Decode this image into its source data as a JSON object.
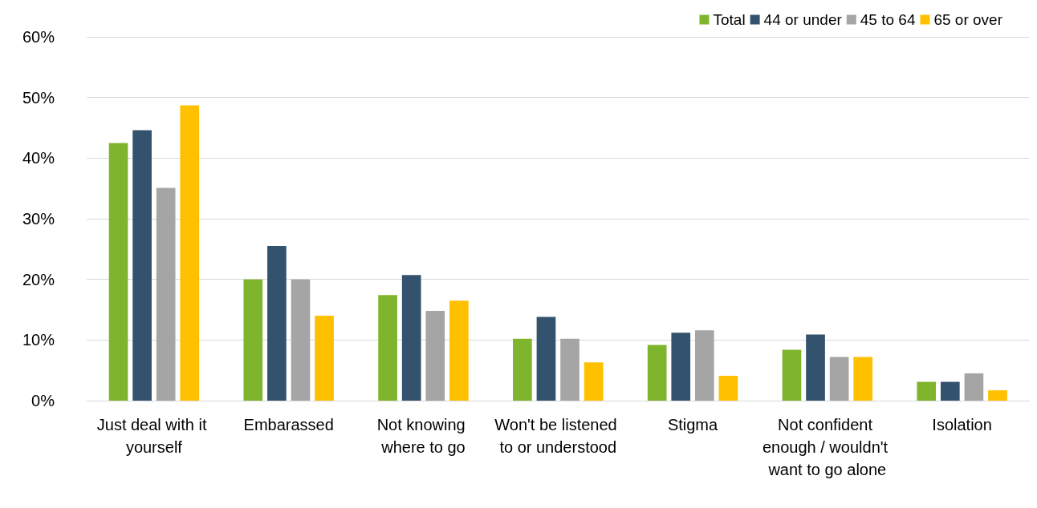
{
  "chart_data": {
    "type": "bar",
    "categories": [
      "Just deal with it yourself",
      "Embarassed",
      "Not knowing where to go",
      "Won't be listened to or understood",
      "Stigma",
      "Not confident enough / wouldn't want to go alone",
      "Isolation"
    ],
    "series": [
      {
        "name": "Total",
        "color": "#7fb52d",
        "values": [
          42.5,
          20.0,
          17.4,
          10.2,
          9.2,
          8.4,
          3.1
        ]
      },
      {
        "name": "44 or under",
        "color": "#32526e",
        "values": [
          44.6,
          25.5,
          20.7,
          13.8,
          11.2,
          10.9,
          3.1
        ]
      },
      {
        "name": "45 to 64",
        "color": "#a5a5a5",
        "values": [
          35.1,
          20.0,
          14.8,
          10.2,
          11.6,
          7.2,
          4.5
        ]
      },
      {
        "name": "65 or over",
        "color": "#ffc000",
        "values": [
          48.7,
          14.0,
          16.5,
          6.3,
          4.1,
          7.2,
          1.7
        ]
      }
    ],
    "ylim": [
      0,
      60
    ],
    "yticks": [
      {
        "value": 0,
        "label": "0%"
      },
      {
        "value": 10,
        "label": "10%"
      },
      {
        "value": 20,
        "label": "20%"
      },
      {
        "value": 30,
        "label": "30%"
      },
      {
        "value": 40,
        "label": "40%"
      },
      {
        "value": 50,
        "label": "50%"
      },
      {
        "value": 60,
        "label": "60%"
      }
    ],
    "grid": "y",
    "legend": "top right"
  }
}
